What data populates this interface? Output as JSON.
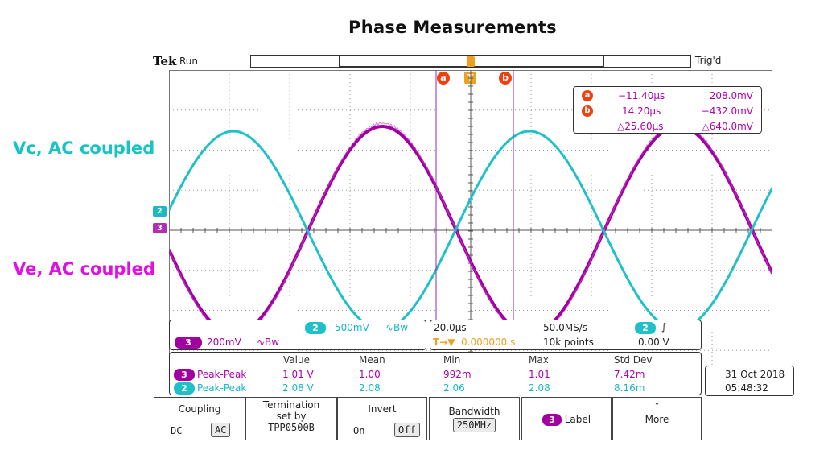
{
  "title": "Phase Measurements",
  "labels": {
    "vc": "Vc, AC coupled",
    "ve": "Ve, AC coupled"
  },
  "colors": {
    "ch2": "#20c0c8",
    "ch3": "#a000a0",
    "cursor": "#9a2ab0",
    "orange": "#f0a020",
    "red": "#f04010"
  },
  "header": {
    "brand": "Tek",
    "status": "Run",
    "trigger_status": "Trig'd",
    "trigger_marker": "T"
  },
  "channels": {
    "ch2_marker": "2",
    "ch3_marker": "3"
  },
  "cursors": {
    "a_label": "a",
    "b_label": "b",
    "a_time": "−11.40µs",
    "a_volt": "208.0mV",
    "b_time": "14.20µs",
    "b_volt": "−432.0mV",
    "delta_time": "△25.60µs",
    "delta_volt": "△640.0mV"
  },
  "ch_info": {
    "ch2_num": "2",
    "ch2_scale": "500mV",
    "ch2_bw_icon": "∿Bw",
    "ch3_num": "3",
    "ch3_scale": "200mV",
    "ch3_bw_icon": "∿Bw"
  },
  "timebase": {
    "horizontal_scale": "20.0µs",
    "sample_rate": "50.0MS/s",
    "trigger_icon": "T→▼",
    "position": "0.000000 s",
    "record_length": "10k points",
    "trig_ch": "2",
    "trig_slope_icon": "∫",
    "trig_level": "0.00 V"
  },
  "measurements": {
    "headers": [
      "Value",
      "Mean",
      "Min",
      "Max",
      "Std Dev"
    ],
    "rows": [
      {
        "ch": "3",
        "name": "Peak-Peak",
        "value": "1.01 V",
        "mean": "1.00",
        "min": "992m",
        "max": "1.01",
        "std": "7.42m"
      },
      {
        "ch": "2",
        "name": "Peak-Peak",
        "value": "2.08 V",
        "mean": "2.08",
        "min": "2.06",
        "max": "2.08",
        "std": "8.16m"
      }
    ]
  },
  "datetime": {
    "date": "31 Oct  2018",
    "time": "05:48:32"
  },
  "menu": {
    "coupling_title": "Coupling",
    "coupling_dc": "DC",
    "coupling_ac": "AC",
    "termination_title": "Termination",
    "termination_sub": "set by",
    "termination_probe": "TPP0500B",
    "invert_title": "Invert",
    "invert_on": "On",
    "invert_off": "Off",
    "bandwidth_title": "Bandwidth",
    "bandwidth_value": "250MHz",
    "label_ch": "3",
    "label_text": "Label",
    "more_arrow": "ˆ",
    "more_text": "More"
  }
}
